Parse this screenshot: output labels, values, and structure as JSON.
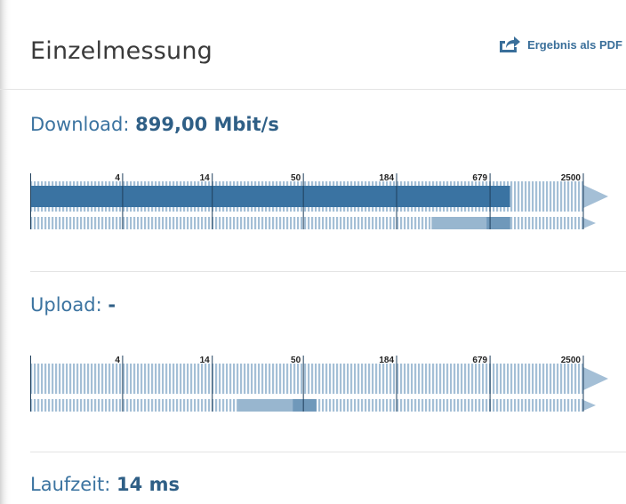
{
  "header": {
    "title": "Einzelmessung",
    "pdf_label": "Ergebnis als PDF",
    "pdf_icon": "share-export-icon"
  },
  "download": {
    "label": "Download:",
    "value": "899,00 Mbit/s",
    "fill_value_mbit": 899,
    "range_low_mbit": 300,
    "range_high_mbit": 900
  },
  "upload": {
    "label": "Upload:",
    "value": "-",
    "range_low_mbit": 20,
    "range_high_mbit": 60
  },
  "latency": {
    "label": "Laufzeit:",
    "value": "14 ms"
  },
  "scale": {
    "ticks": [
      "4",
      "14",
      "50",
      "184",
      "679",
      "2500"
    ],
    "tick_values": [
      4,
      14,
      50,
      184,
      679,
      2500
    ],
    "min_value": 1.1,
    "max_value": 2500
  },
  "colors": {
    "accent": "#3b73a0",
    "dark_fill": "#3a73a2",
    "light_stripe": "#a4bfd6",
    "range_light": "#98b6cf",
    "range_dark": "#6f98ba"
  }
}
